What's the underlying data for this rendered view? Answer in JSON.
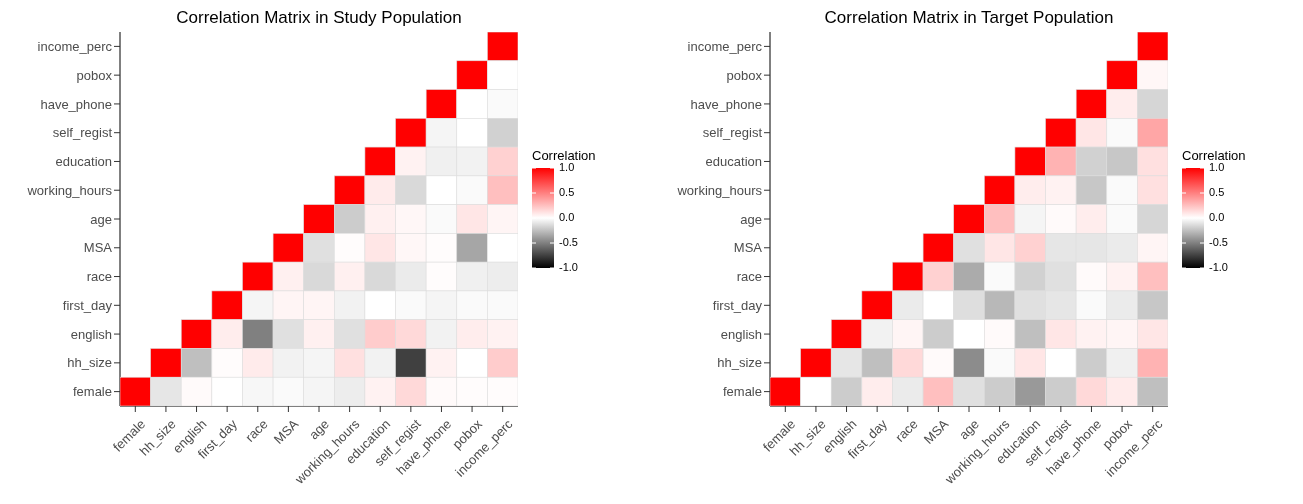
{
  "chart_data": [
    {
      "type": "heatmap",
      "title": "Correlation Matrix in Study Population",
      "clabel": "Correlation",
      "categories": [
        "female",
        "hh_size",
        "english",
        "first_day",
        "race",
        "MSA",
        "age",
        "working_hours",
        "education",
        "self_regist",
        "have_phone",
        "pobox",
        "income_perc"
      ],
      "y_categories": [
        "income_perc",
        "pobox",
        "have_phone",
        "self_regist",
        "education",
        "working_hours",
        "age",
        "MSA",
        "race",
        "first_day",
        "english",
        "hh_size",
        "female"
      ],
      "cells": [
        [
          null,
          null,
          null,
          null,
          null,
          null,
          null,
          null,
          null,
          null,
          null,
          null,
          1
        ],
        [
          null,
          null,
          null,
          null,
          null,
          null,
          null,
          null,
          null,
          null,
          null,
          1,
          0.0
        ],
        [
          null,
          null,
          null,
          null,
          null,
          null,
          null,
          null,
          null,
          null,
          1,
          0.0,
          -0.02
        ],
        [
          null,
          null,
          null,
          null,
          null,
          null,
          null,
          null,
          null,
          1,
          -0.04,
          0.0,
          -0.18
        ],
        [
          null,
          null,
          null,
          null,
          null,
          null,
          null,
          null,
          1,
          0.05,
          -0.06,
          -0.05,
          0.18
        ],
        [
          null,
          null,
          null,
          null,
          null,
          null,
          null,
          1,
          0.08,
          -0.15,
          0.0,
          -0.02,
          0.25
        ],
        [
          null,
          null,
          null,
          null,
          null,
          null,
          1,
          -0.2,
          0.06,
          0.03,
          -0.02,
          0.1,
          0.04
        ],
        [
          null,
          null,
          null,
          null,
          null,
          1,
          -0.12,
          0.01,
          0.1,
          0.03,
          0.01,
          -0.35,
          0.0
        ],
        [
          null,
          null,
          null,
          null,
          1,
          0.06,
          -0.15,
          0.06,
          -0.15,
          -0.08,
          0.01,
          -0.06,
          -0.07
        ],
        [
          null,
          null,
          null,
          1,
          -0.04,
          0.04,
          0.04,
          -0.05,
          0.0,
          -0.02,
          -0.04,
          -0.02,
          -0.02
        ],
        [
          null,
          null,
          1,
          0.07,
          -0.5,
          -0.12,
          0.06,
          -0.12,
          0.2,
          0.15,
          -0.05,
          0.07,
          0.05
        ],
        [
          null,
          1,
          -0.25,
          0.01,
          0.08,
          -0.05,
          -0.04,
          0.12,
          -0.05,
          -0.75,
          0.05,
          0.0,
          0.2
        ],
        [
          1,
          -0.1,
          0.02,
          0.0,
          -0.03,
          -0.02,
          -0.04,
          -0.07,
          0.05,
          0.15,
          0.02,
          0.01,
          0.01
        ]
      ],
      "clim": [
        -1,
        1
      ],
      "cticks": [
        {
          "value": 1,
          "label": "1.0"
        },
        {
          "value": 0.5,
          "label": "0.5"
        },
        {
          "value": 0,
          "label": "0.0"
        },
        {
          "value": -0.5,
          "label": "-0.5"
        },
        {
          "value": -1,
          "label": "-1.0"
        }
      ]
    },
    {
      "type": "heatmap",
      "title": "Correlation Matrix in Target Population",
      "clabel": "Correlation",
      "categories": [
        "female",
        "hh_size",
        "english",
        "first_day",
        "race",
        "MSA",
        "age",
        "working_hours",
        "education",
        "self_regist",
        "have_phone",
        "pobox",
        "income_perc"
      ],
      "y_categories": [
        "income_perc",
        "pobox",
        "have_phone",
        "self_regist",
        "education",
        "working_hours",
        "age",
        "MSA",
        "race",
        "first_day",
        "english",
        "hh_size",
        "female"
      ],
      "cells": [
        [
          null,
          null,
          null,
          null,
          null,
          null,
          null,
          null,
          null,
          null,
          null,
          null,
          1
        ],
        [
          null,
          null,
          null,
          null,
          null,
          null,
          null,
          null,
          null,
          null,
          null,
          1,
          0.03
        ],
        [
          null,
          null,
          null,
          null,
          null,
          null,
          null,
          null,
          null,
          null,
          1,
          0.07,
          -0.16
        ],
        [
          null,
          null,
          null,
          null,
          null,
          null,
          null,
          null,
          null,
          1,
          0.1,
          -0.02,
          0.35
        ],
        [
          null,
          null,
          null,
          null,
          null,
          null,
          null,
          null,
          1,
          0.3,
          -0.18,
          -0.22,
          0.12
        ],
        [
          null,
          null,
          null,
          null,
          null,
          null,
          null,
          1,
          0.07,
          0.05,
          -0.22,
          -0.02,
          0.12
        ],
        [
          null,
          null,
          null,
          null,
          null,
          null,
          1,
          0.25,
          -0.04,
          0.02,
          0.07,
          -0.02,
          -0.16
        ],
        [
          null,
          null,
          null,
          null,
          null,
          1,
          -0.12,
          0.1,
          0.18,
          -0.1,
          -0.1,
          -0.08,
          0.04
        ],
        [
          null,
          null,
          null,
          null,
          1,
          0.18,
          -0.33,
          -0.02,
          -0.18,
          -0.12,
          0.02,
          0.05,
          0.25
        ],
        [
          null,
          null,
          null,
          1,
          -0.08,
          0.0,
          -0.13,
          -0.28,
          -0.12,
          -0.1,
          -0.02,
          -0.08,
          -0.22
        ],
        [
          null,
          null,
          1,
          -0.05,
          0.04,
          -0.2,
          0.0,
          0.02,
          -0.25,
          0.1,
          0.05,
          0.04,
          0.1
        ],
        [
          null,
          1,
          -0.1,
          -0.25,
          0.15,
          0.02,
          -0.45,
          -0.02,
          0.1,
          0.0,
          -0.2,
          -0.06,
          0.3
        ],
        [
          1,
          0.0,
          -0.2,
          0.07,
          -0.08,
          0.25,
          -0.12,
          -0.2,
          -0.4,
          -0.2,
          0.15,
          0.08,
          -0.25
        ]
      ],
      "clim": [
        -1,
        1
      ],
      "cticks": [
        {
          "value": 1,
          "label": "1.0"
        },
        {
          "value": 0.5,
          "label": "0.5"
        },
        {
          "value": 0,
          "label": "0.0"
        },
        {
          "value": -0.5,
          "label": "-0.5"
        },
        {
          "value": -1,
          "label": "-1.0"
        }
      ]
    }
  ]
}
